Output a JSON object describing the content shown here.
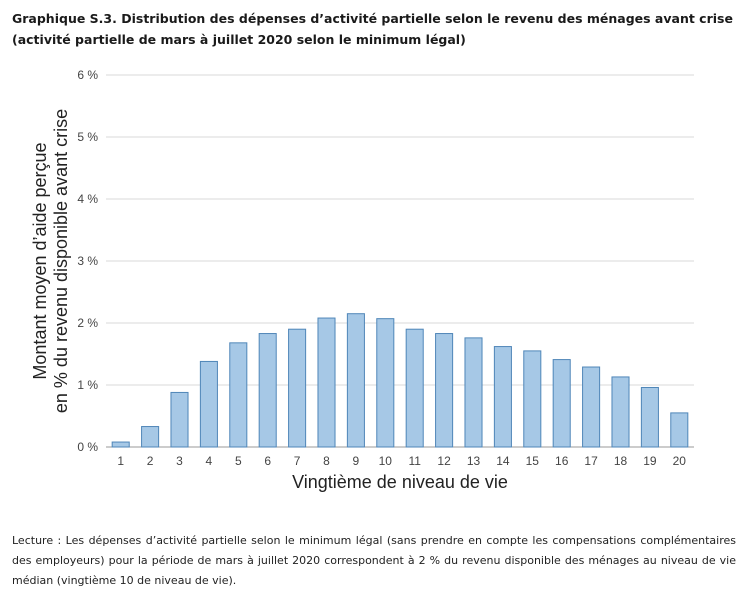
{
  "title": {
    "line1": "Graphique S.3. Distribution des dépenses d’activité partielle selon le revenu des ménages avant crise",
    "line2": "(activité partielle de mars à juillet 2020 selon le minimum légal)"
  },
  "note": "Lecture : Les dépenses d’activité partielle selon le minimum légal (sans prendre en compte les compensations complémentaires des employeurs) pour la période de mars à juillet 2020 correspondent à 2 % du revenu disponible des ménages au niveau de vie médian (vingtième 10 de niveau de vie).",
  "chart_data": {
    "type": "bar",
    "categories": [
      "1",
      "2",
      "3",
      "4",
      "5",
      "6",
      "7",
      "8",
      "9",
      "10",
      "11",
      "12",
      "13",
      "14",
      "15",
      "16",
      "17",
      "18",
      "19",
      "20"
    ],
    "values": [
      0.08,
      0.33,
      0.88,
      1.38,
      1.68,
      1.83,
      1.9,
      2.08,
      2.15,
      2.07,
      1.9,
      1.83,
      1.76,
      1.62,
      1.55,
      1.41,
      1.29,
      1.13,
      0.96,
      0.55
    ],
    "ylim": [
      0,
      6
    ],
    "yticks": [
      0,
      1,
      2,
      3,
      4,
      5,
      6
    ],
    "ytick_labels": [
      "0 %",
      "1 %",
      "2 %",
      "3 %",
      "4 %",
      "5 %",
      "6 %"
    ],
    "xlabel": "Vingtième de niveau de vie",
    "ylabel_line1": "Montant moyen d’aide perçue",
    "ylabel_line2": "en % du revenu disponible avant crise",
    "grid": true,
    "bar_color": "#a6c8e6",
    "bar_edge_color": "#4f86b8",
    "grid_color": "#d9d9d9"
  }
}
